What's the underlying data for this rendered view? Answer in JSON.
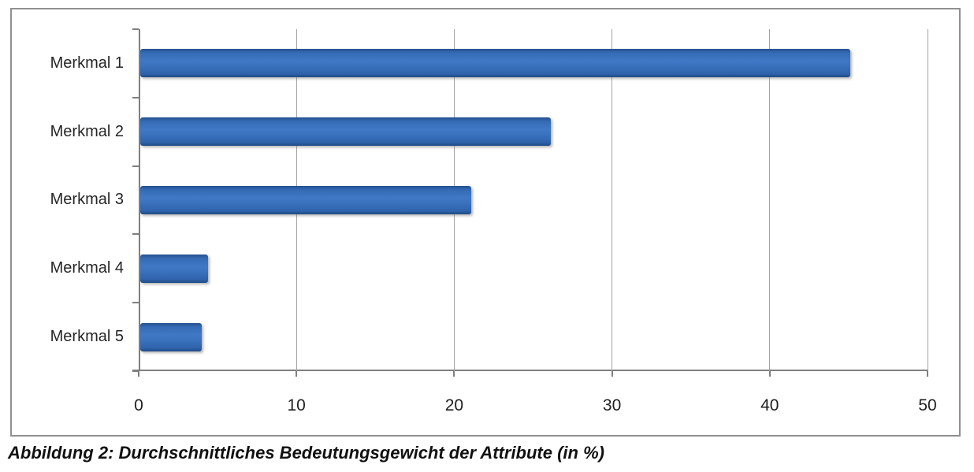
{
  "caption": {
    "text": "Abbildung 2: Durchschnittliches Bedeutungsgewicht der Attribute (in %)"
  },
  "chart_data": {
    "type": "bar",
    "orientation": "horizontal",
    "title": "",
    "xlabel": "",
    "ylabel": "",
    "categories": [
      "Merkmal 1",
      "Merkmal 2",
      "Merkmal 3",
      "Merkmal 4",
      "Merkmal 5"
    ],
    "values": [
      45,
      26,
      21,
      4.3,
      3.9
    ],
    "x_ticks": [
      0,
      10,
      20,
      30,
      40,
      50
    ],
    "xlim": [
      0,
      50
    ],
    "grid": true,
    "legend": false,
    "bar_color": "#3a70bd",
    "gridline_color": "#a3a3a3",
    "axis_color": "#7f7f7f"
  }
}
